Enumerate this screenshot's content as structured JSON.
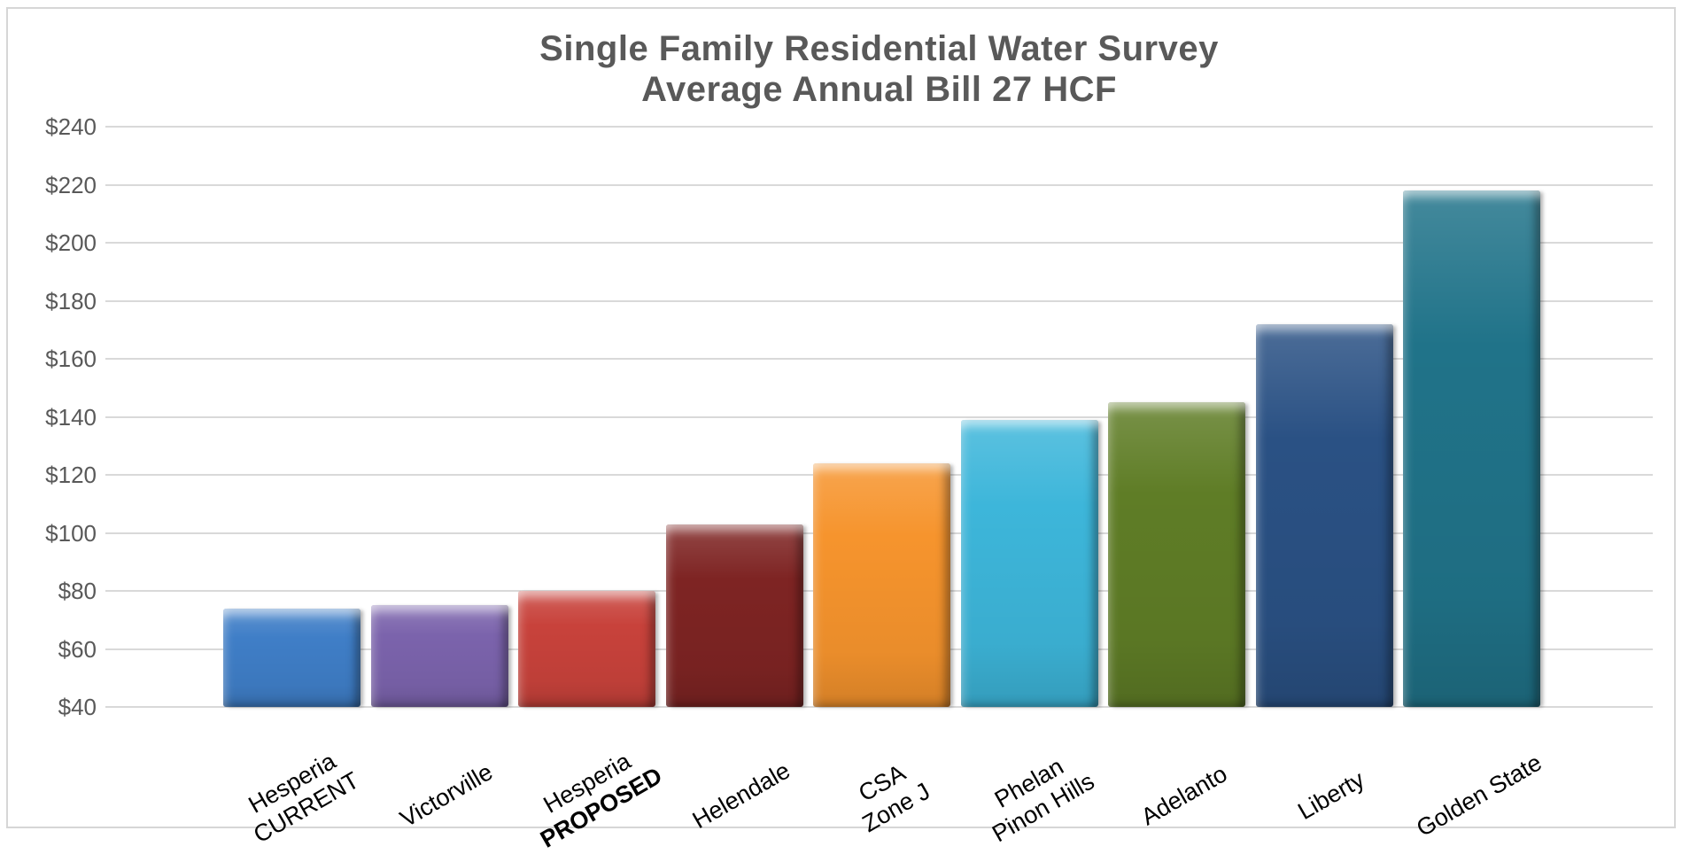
{
  "frame": {
    "background": "#FFFFFF",
    "border_color": "#D6D6D6"
  },
  "chart_data": {
    "type": "bar",
    "title": "Single Family Residential Water Survey",
    "subtitle": "Average Annual Bill 27 HCF",
    "categories": [
      {
        "lines": [
          "Hesperia",
          "CURRENT"
        ],
        "bold_lines": []
      },
      {
        "lines": [
          "Victorville"
        ],
        "bold_lines": []
      },
      {
        "lines": [
          "Hesperia",
          "PROPOSED"
        ],
        "bold_lines": [
          1
        ]
      },
      {
        "lines": [
          "Helendale"
        ],
        "bold_lines": []
      },
      {
        "lines": [
          "CSA",
          "Zone J"
        ],
        "bold_lines": []
      },
      {
        "lines": [
          "Phelan",
          "Pinon Hills"
        ],
        "bold_lines": []
      },
      {
        "lines": [
          "Adelanto"
        ],
        "bold_lines": []
      },
      {
        "lines": [
          "Liberty"
        ],
        "bold_lines": []
      },
      {
        "lines": [
          "Golden State"
        ],
        "bold_lines": []
      }
    ],
    "values": [
      74,
      75,
      80,
      103,
      124,
      139,
      145,
      172,
      218
    ],
    "bar_colors": [
      "#3F7EC7",
      "#7B63AC",
      "#C8423B",
      "#7E2423",
      "#F6942D",
      "#3DB6DA",
      "#5F7D26",
      "#2A5184",
      "#207389"
    ],
    "ylim": [
      40,
      240
    ],
    "ytick_step": 20,
    "ytick_labels": [
      "$240",
      "$220",
      "$200",
      "$180",
      "$160",
      "$140",
      "$120",
      "$100",
      "$80",
      "$60",
      "$40"
    ],
    "xlabel": "",
    "ylabel": "",
    "grid": true,
    "legend": false,
    "styles": {
      "title_color": "#595959",
      "axis_label_color": "#595959",
      "category_label_color": "#000000",
      "gridline_color": "#D9D9D9"
    }
  }
}
